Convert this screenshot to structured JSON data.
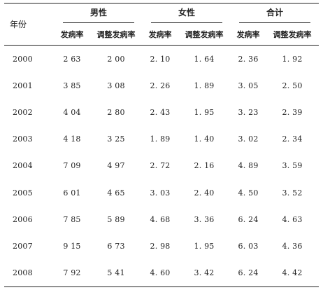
{
  "header": {
    "year_label": "年份",
    "groups": [
      "男性",
      "女性",
      "合计"
    ],
    "sub_labels": [
      "发病率",
      "调整发病率",
      "发病率",
      "调整发病率",
      "发病率",
      "调整发病率"
    ]
  },
  "rows": [
    {
      "year": "2000",
      "cells": [
        "2 63",
        "2 00",
        "2. 10",
        "1. 64",
        "2. 36",
        "1. 92"
      ]
    },
    {
      "year": "2001",
      "cells": [
        "3 85",
        "3 08",
        "2. 26",
        "1. 89",
        "3. 05",
        "2. 50"
      ]
    },
    {
      "year": "2002",
      "cells": [
        "4 04",
        "2 80",
        "2. 43",
        "1. 95",
        "3. 23",
        "2. 39"
      ]
    },
    {
      "year": "2003",
      "cells": [
        "4 18",
        "3 25",
        "1. 89",
        "1. 40",
        "3. 02",
        "2. 34"
      ]
    },
    {
      "year": "2004",
      "cells": [
        "7 09",
        "4 97",
        "2. 72",
        "2. 16",
        "4. 89",
        "3. 59"
      ]
    },
    {
      "year": "2005",
      "cells": [
        "6 01",
        "4 65",
        "3. 03",
        "2. 40",
        "4. 50",
        "3. 52"
      ]
    },
    {
      "year": "2006",
      "cells": [
        "7 85",
        "5 89",
        "4. 68",
        "3. 36",
        "6. 24",
        "4. 63"
      ]
    },
    {
      "year": "2007",
      "cells": [
        "9 15",
        "6 73",
        "2. 98",
        "1. 95",
        "6. 03",
        "4. 36"
      ]
    },
    {
      "year": "2008",
      "cells": [
        "7 92",
        "5 41",
        "4. 60",
        "3. 42",
        "6. 24",
        "4. 42"
      ]
    }
  ]
}
